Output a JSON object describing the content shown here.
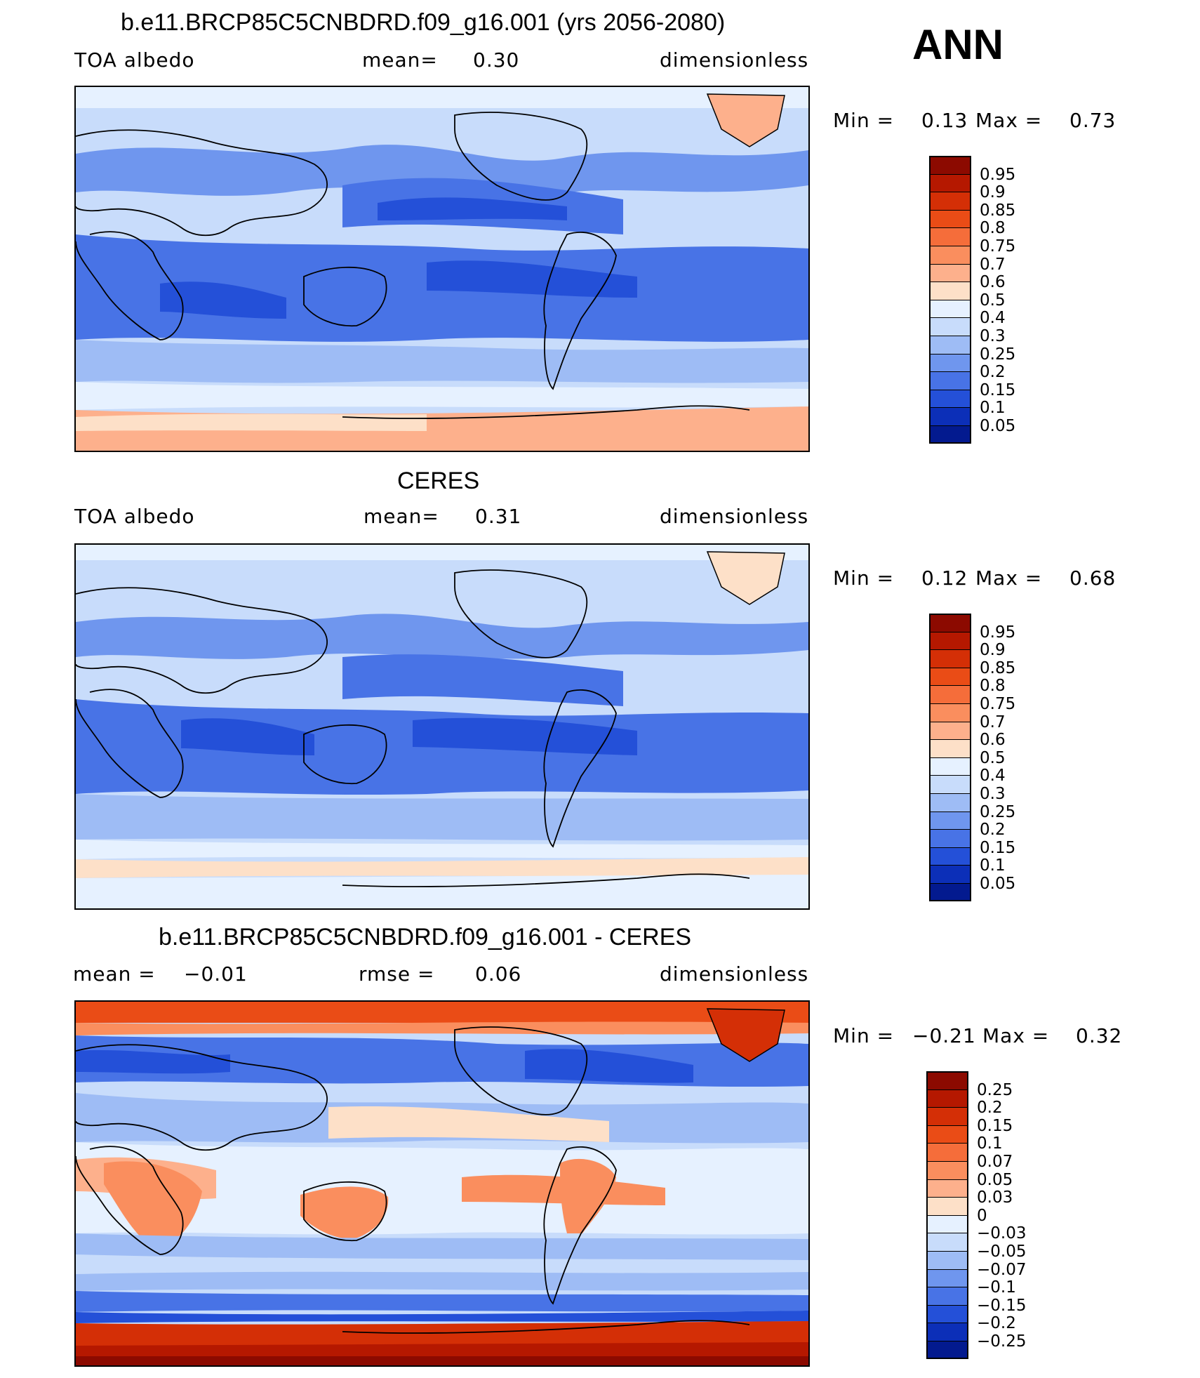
{
  "season": "ANN",
  "panels": [
    {
      "title": "b.e11.BRCP85C5CNBDRD.f09_g16.001 (yrs 2056-2080)",
      "left": "TOA albedo",
      "center_label": "mean=",
      "center_value": "0.30",
      "right": "dimensionless",
      "minmax": {
        "min_label": "Min =",
        "min": "0.13",
        "max_label": "Max =",
        "max": "0.73"
      },
      "kind": "albedo"
    },
    {
      "title": "CERES",
      "left": "TOA albedo",
      "center_label": "mean=",
      "center_value": "0.31",
      "right": "dimensionless",
      "minmax": {
        "min_label": "Min =",
        "min": "0.12",
        "max_label": "Max =",
        "max": "0.68"
      },
      "kind": "albedo"
    },
    {
      "title": "b.e11.BRCP85C5CNBDRD.f09_g16.001 - CERES",
      "left_label": "mean =",
      "left_value": "−0.01",
      "center_label": "rmse =",
      "center_value": "0.06",
      "right": "dimensionless",
      "minmax": {
        "min_label": "Min =",
        "min": "−0.21",
        "max_label": "Max =",
        "max": "0.32"
      },
      "kind": "diff"
    }
  ],
  "colorbars": {
    "albedo": {
      "labels": [
        "0.95",
        "0.9",
        "0.85",
        "0.8",
        "0.75",
        "0.7",
        "0.6",
        "0.5",
        "0.4",
        "0.3",
        "0.25",
        "0.2",
        "0.15",
        "0.1",
        "0.05"
      ],
      "colors": [
        "#8c0a00",
        "#b51800",
        "#d42f06",
        "#ea4c16",
        "#f56d3a",
        "#fa8e5e",
        "#fdb08c",
        "#fde0c8",
        "#e6f1ff",
        "#c8dcfb",
        "#9ebcf5",
        "#6f96ee",
        "#4873e6",
        "#2450d8",
        "#0c2fb8",
        "#031a8f"
      ]
    },
    "diff": {
      "labels": [
        "0.25",
        "0.2",
        "0.15",
        "0.1",
        "0.07",
        "0.05",
        "0.03",
        "0",
        "−0.03",
        "−0.05",
        "−0.07",
        "−0.1",
        "−0.15",
        "−0.2",
        "−0.25"
      ],
      "colors": [
        "#8c0a00",
        "#b51800",
        "#d42f06",
        "#ea4c16",
        "#f56d3a",
        "#fa8e5e",
        "#fdb08c",
        "#fde0c8",
        "#e6f1ff",
        "#c8dcfb",
        "#9ebcf5",
        "#6f96ee",
        "#4873e6",
        "#2450d8",
        "#0c2fb8",
        "#031a8f"
      ]
    }
  }
}
